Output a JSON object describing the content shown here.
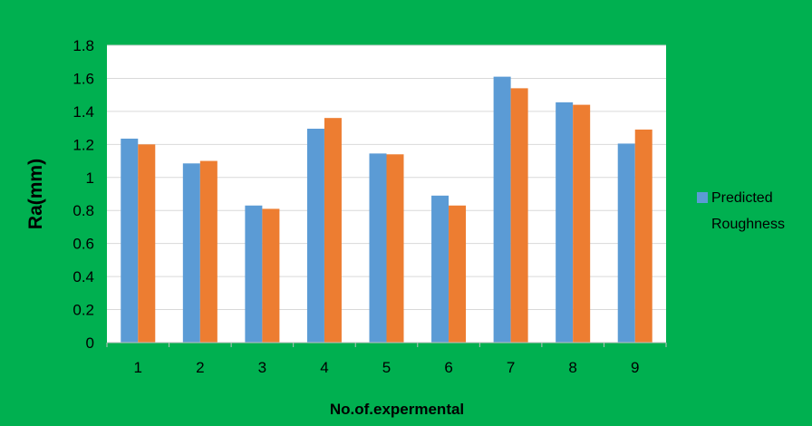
{
  "chart_data": {
    "type": "bar",
    "title": "",
    "xlabel": "No.of.expermental",
    "ylabel": "Ra(mm)",
    "categories": [
      "1",
      "2",
      "3",
      "4",
      "5",
      "6",
      "7",
      "8",
      "9"
    ],
    "y_ticks": [
      "0",
      "0.2",
      "0.4",
      "0.6",
      "0.8",
      "1",
      "1.2",
      "1.4",
      "1.6",
      "1.8"
    ],
    "ylim": [
      0,
      1.8
    ],
    "grid": true,
    "legend_position": "right",
    "legend_lines": [
      "Predicted",
      "Roughness"
    ],
    "series": [
      {
        "name": "Predicted Roughness",
        "color": "#5b9bd5",
        "values": [
          1.235,
          1.085,
          0.83,
          1.295,
          1.145,
          0.89,
          1.61,
          1.455,
          1.205
        ]
      },
      {
        "color": "#ed7d31",
        "values": [
          1.2,
          1.1,
          0.81,
          1.36,
          1.14,
          0.83,
          1.54,
          1.44,
          1.29
        ]
      }
    ]
  },
  "colors": {
    "background": "#00b050",
    "plot_area": "#ffffff",
    "gridline": "#d9d9d9"
  }
}
